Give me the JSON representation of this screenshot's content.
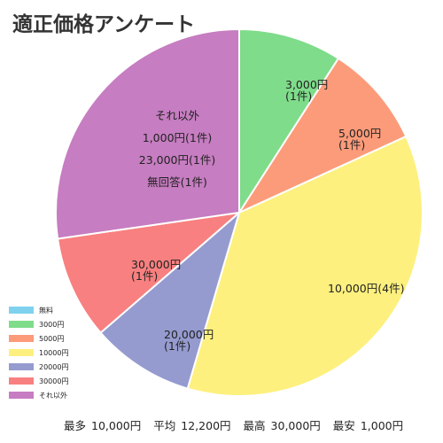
{
  "chart_data": {
    "type": "pie",
    "title": "適正価格アンケート",
    "slices": [
      {
        "label": "3,000円",
        "count_label": "(1件)",
        "value": 1,
        "color": "#7fdc8a"
      },
      {
        "label": "5,000円",
        "count_label": "(1件)",
        "value": 1,
        "color": "#fc9b7a"
      },
      {
        "label": "10,000円(4件)",
        "count_label": "",
        "value": 4,
        "color": "#fdf07e"
      },
      {
        "label": "20,000円",
        "count_label": "(1件)",
        "value": 1,
        "color": "#959bcf"
      },
      {
        "label": "30,000円",
        "count_label": "(1件)",
        "value": 1,
        "color": "#f88080"
      },
      {
        "label": "",
        "count_label": "",
        "value": 3,
        "color": "#c67dc1",
        "lines": [
          "それ以外",
          "1,000円(1件)",
          "23,000円(1件)",
          "無回答(1件)"
        ]
      }
    ],
    "legend": [
      {
        "label": "無料",
        "color": "#7fd2ee"
      },
      {
        "label": "3000円",
        "color": "#7fdc8a"
      },
      {
        "label": "5000円",
        "color": "#fc9b7a"
      },
      {
        "label": "10000円",
        "color": "#fdf07e"
      },
      {
        "label": "20000円",
        "color": "#959bcf"
      },
      {
        "label": "30000円",
        "color": "#f88080"
      },
      {
        "label": "それ以外",
        "color": "#c67dc1"
      }
    ],
    "legend_position": "bottom-left",
    "start": "top, clockwise"
  },
  "stats": [
    {
      "label": "最多",
      "value": "10,000円"
    },
    {
      "label": "平均",
      "value": "12,200円"
    },
    {
      "label": "最高",
      "value": "30,000円"
    },
    {
      "label": "最安",
      "value": "1,000円"
    }
  ]
}
